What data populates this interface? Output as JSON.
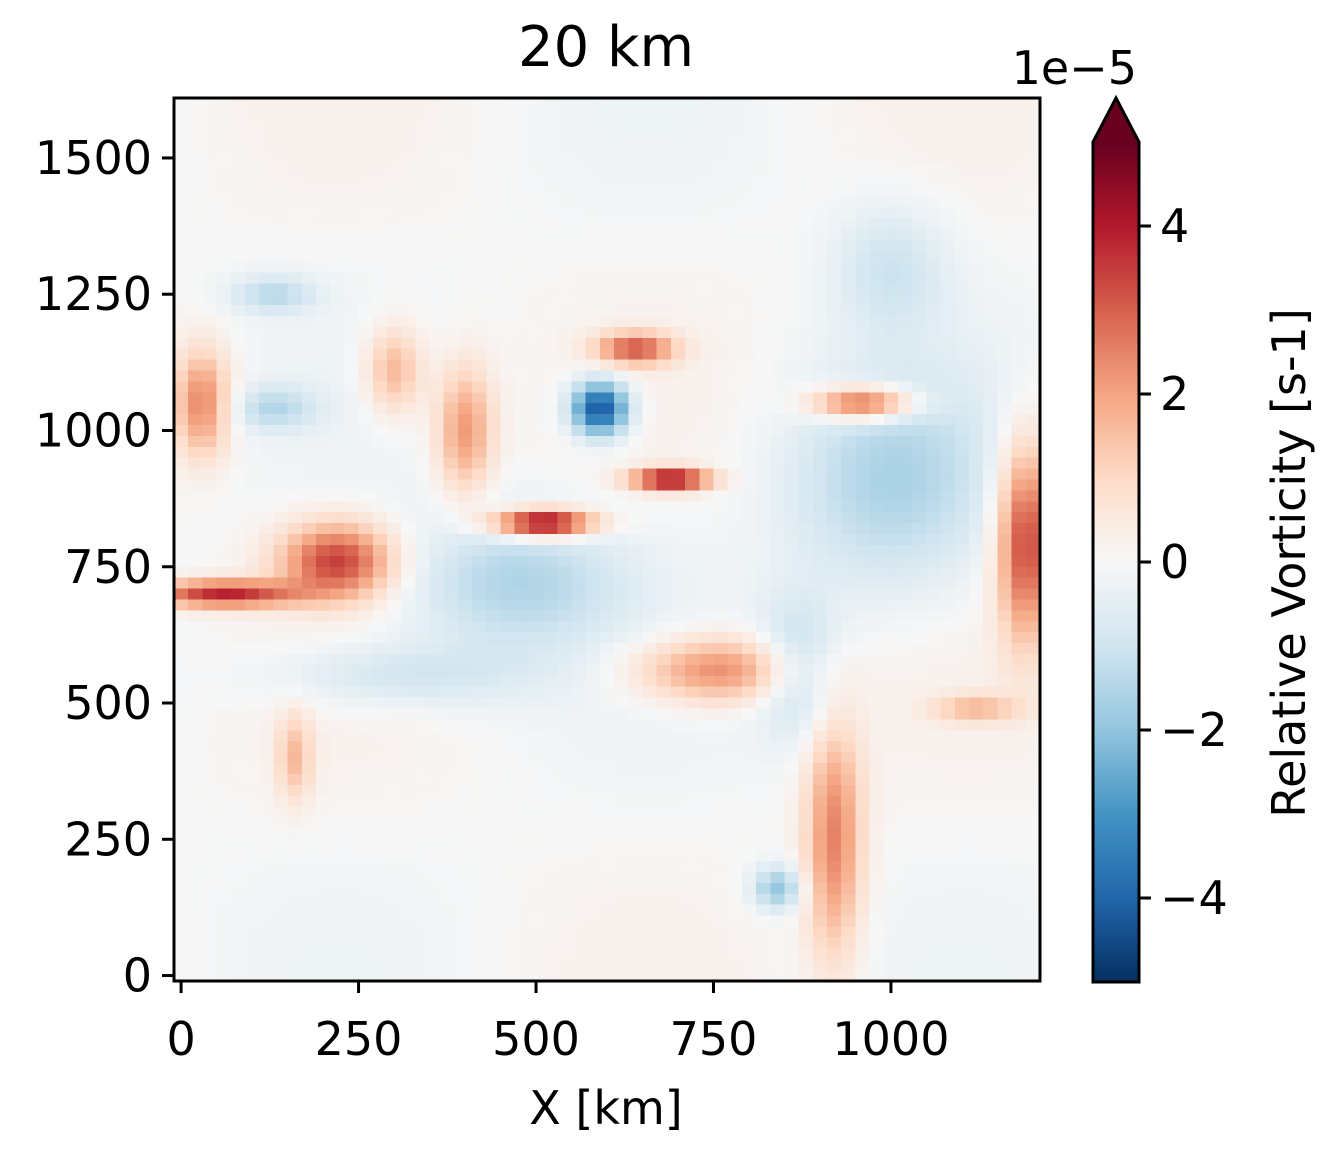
{
  "chart_data": {
    "type": "heatmap",
    "title": "20 km",
    "xlabel": "X [km]",
    "ylabel": "",
    "xlim": [
      -10,
      1210
    ],
    "ylim": [
      -10,
      1610
    ],
    "x_ticks": [
      0,
      250,
      500,
      750,
      1000
    ],
    "y_ticks": [
      0,
      250,
      500,
      750,
      1000,
      1250,
      1500
    ],
    "colorbar": {
      "label": "Relative Vorticity [s-1]",
      "multiplier": "1e−5",
      "colormap": "RdBu_r",
      "vmin": -5,
      "vmax": 5,
      "extend": "max",
      "ticks": [
        -4,
        -2,
        0,
        2,
        4
      ],
      "tick_labels": [
        "−4",
        "−2",
        "0",
        "2",
        "4"
      ]
    },
    "features": [
      {
        "kind": "vortex",
        "x": 590,
        "y": 1040,
        "value": -4.5,
        "rx": 40,
        "ry": 50
      },
      {
        "kind": "vortex",
        "x": 840,
        "y": 160,
        "value": -2.0,
        "rx": 35,
        "ry": 40
      },
      {
        "kind": "filament",
        "x": 510,
        "y": 830,
        "value": 5.0,
        "rx": 70,
        "ry": 25
      },
      {
        "kind": "filament",
        "x": 690,
        "y": 910,
        "value": 4.5,
        "rx": 55,
        "ry": 20
      },
      {
        "kind": "filament",
        "x": 640,
        "y": 1150,
        "value": 3.0,
        "rx": 55,
        "ry": 30
      },
      {
        "kind": "filament",
        "x": 960,
        "y": 1050,
        "value": 3.5,
        "rx": 70,
        "ry": 30
      },
      {
        "kind": "filament",
        "x": 220,
        "y": 760,
        "value": 3.5,
        "rx": 80,
        "ry": 70
      },
      {
        "kind": "filament",
        "x": 60,
        "y": 700,
        "value": 3.8,
        "rx": 100,
        "ry": 25
      },
      {
        "kind": "filament",
        "x": 1190,
        "y": 800,
        "value": 3.5,
        "rx": 40,
        "ry": 180
      },
      {
        "kind": "filament",
        "x": 920,
        "y": 250,
        "value": 2.5,
        "rx": 40,
        "ry": 220
      },
      {
        "kind": "filament",
        "x": 760,
        "y": 560,
        "value": 2.5,
        "rx": 120,
        "ry": 60
      },
      {
        "kind": "filament",
        "x": 400,
        "y": 1000,
        "value": 2.2,
        "rx": 40,
        "ry": 120
      },
      {
        "kind": "filament",
        "x": 30,
        "y": 1050,
        "value": 2.5,
        "rx": 40,
        "ry": 100
      },
      {
        "kind": "filament",
        "x": 160,
        "y": 400,
        "value": 1.5,
        "rx": 25,
        "ry": 80
      },
      {
        "kind": "filament",
        "x": 1120,
        "y": 490,
        "value": 1.5,
        "rx": 60,
        "ry": 25
      },
      {
        "kind": "filament",
        "x": 300,
        "y": 1110,
        "value": 1.8,
        "rx": 40,
        "ry": 80
      },
      {
        "kind": "band",
        "x": 470,
        "y": 720,
        "value": -1.5,
        "rx": 160,
        "ry": 130
      },
      {
        "kind": "band",
        "x": 1000,
        "y": 900,
        "value": -1.5,
        "rx": 150,
        "ry": 200
      },
      {
        "kind": "band",
        "x": 130,
        "y": 1250,
        "value": -1.3,
        "rx": 60,
        "ry": 35
      },
      {
        "kind": "band",
        "x": 130,
        "y": 1040,
        "value": -1.3,
        "rx": 60,
        "ry": 40
      },
      {
        "kind": "band",
        "x": 870,
        "y": 560,
        "value": -1.5,
        "rx": 60,
        "ry": 120
      },
      {
        "kind": "band",
        "x": 300,
        "y": 550,
        "value": -1.0,
        "rx": 180,
        "ry": 60
      },
      {
        "kind": "band",
        "x": 1000,
        "y": 1300,
        "value": -1.0,
        "rx": 80,
        "ry": 120
      }
    ]
  }
}
